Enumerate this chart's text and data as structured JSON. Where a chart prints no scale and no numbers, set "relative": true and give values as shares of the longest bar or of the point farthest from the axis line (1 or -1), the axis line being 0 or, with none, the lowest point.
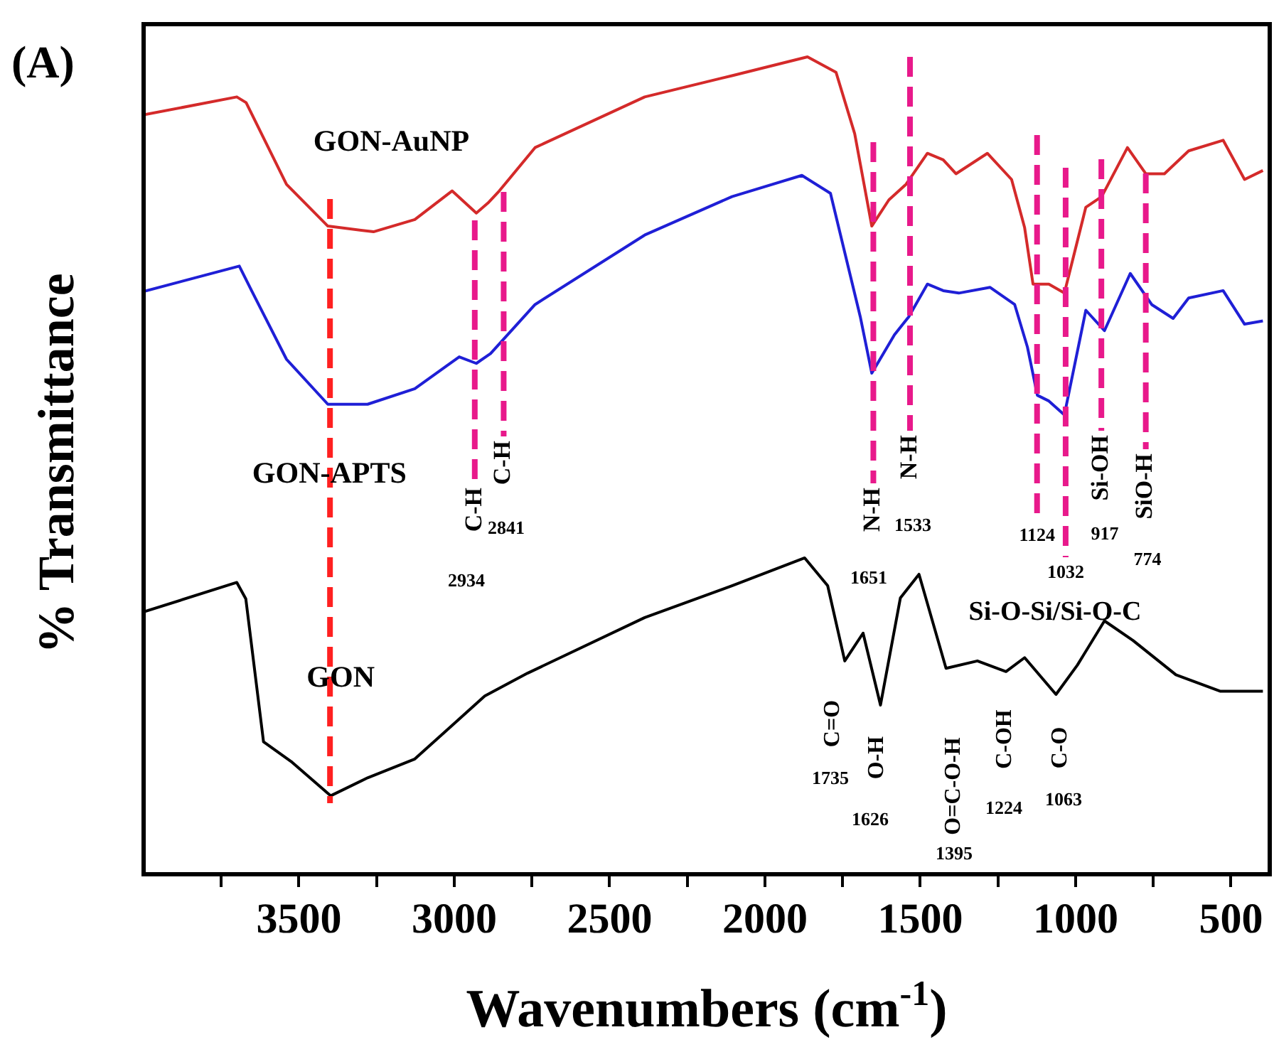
{
  "chart_data": {
    "type": "line",
    "title": "(A)",
    "xlabel": "Wavenumbers (cm$^{-1}$)",
    "ylabel": "% Transmittance",
    "relative": true,
    "marker": "none",
    "line_style": "solid",
    "xlim": [
      4000,
      375
    ],
    "xticks": [
      {
        "value": 3750,
        "label": null
      },
      3500,
      {
        "value": 3250,
        "label": null
      },
      3000,
      {
        "value": 2750,
        "label": null
      },
      2500,
      {
        "value": 2250,
        "label": null
      },
      2000,
      {
        "value": 1750,
        "label": null
      },
      1500,
      {
        "value": 1250,
        "label": null
      },
      1000,
      {
        "value": 750,
        "label": null
      },
      500
    ],
    "series": [
      {
        "name": "GON-AuNP",
        "color": "#d42a2a",
        "x": [
          4000,
          3700,
          3670,
          3540,
          3407,
          3260,
          3127,
          3007,
          2929,
          2892,
          2855,
          2740,
          2387,
          2106,
          1863,
          1771,
          1711,
          1656,
          1601,
          1546,
          1477,
          1426,
          1385,
          1284,
          1206,
          1164,
          1137,
          1086,
          1036,
          967,
          916,
          833,
          774,
          714,
          636,
          525,
          456,
          397
        ],
        "values": [
          0.929,
          0.951,
          0.944,
          0.844,
          0.793,
          0.786,
          0.801,
          0.836,
          0.809,
          0.821,
          0.836,
          0.889,
          0.951,
          0.977,
          1.0,
          0.981,
          0.906,
          0.793,
          0.825,
          0.844,
          0.882,
          0.874,
          0.857,
          0.882,
          0.85,
          0.791,
          0.722,
          0.722,
          0.711,
          0.816,
          0.829,
          0.889,
          0.857,
          0.857,
          0.885,
          0.898,
          0.85,
          0.861
        ]
      },
      {
        "name": "GON-APTS",
        "color": "#1f1fd6",
        "x": [
          4000,
          3692,
          3651,
          3540,
          3407,
          3279,
          3127,
          2984,
          2929,
          2883,
          2740,
          2387,
          2106,
          1881,
          1789,
          1693,
          1656,
          1583,
          1537,
          1477,
          1426,
          1376,
          1275,
          1196,
          1155,
          1123,
          1086,
          1036,
          967,
          907,
          824,
          755,
          686,
          636,
          525,
          456,
          397
        ],
        "values": [
          0.713,
          0.744,
          0.713,
          0.63,
          0.575,
          0.575,
          0.594,
          0.633,
          0.625,
          0.637,
          0.697,
          0.782,
          0.829,
          0.855,
          0.833,
          0.682,
          0.613,
          0.66,
          0.682,
          0.722,
          0.714,
          0.711,
          0.718,
          0.697,
          0.645,
          0.586,
          0.579,
          0.562,
          0.69,
          0.665,
          0.735,
          0.697,
          0.68,
          0.705,
          0.714,
          0.673,
          0.677
        ]
      },
      {
        "name": "GON",
        "color": "#000000",
        "x": [
          4000,
          3700,
          3671,
          3614,
          3522,
          3398,
          3279,
          3127,
          2902,
          2764,
          2387,
          2106,
          1872,
          1798,
          1743,
          1684,
          1628,
          1564,
          1504,
          1417,
          1316,
          1224,
          1164,
          1063,
          994,
          907,
          815,
          677,
          535,
          397
        ],
        "values": [
          0.321,
          0.357,
          0.337,
          0.162,
          0.137,
          0.096,
          0.118,
          0.141,
          0.218,
          0.246,
          0.314,
          0.353,
          0.387,
          0.353,
          0.261,
          0.295,
          0.207,
          0.338,
          0.367,
          0.252,
          0.261,
          0.248,
          0.265,
          0.22,
          0.256,
          0.31,
          0.286,
          0.244,
          0.224,
          0.224
        ]
      }
    ],
    "ref_lines": [
      {
        "axis": "x",
        "value": 3400,
        "color": "#ff2020",
        "line_style": "dashed"
      },
      {
        "axis": "x",
        "value": 2934,
        "label": "C-H",
        "color": "#e8198b",
        "line_style": "dashed"
      },
      {
        "axis": "x",
        "value": 2841,
        "label": "C-H",
        "color": "#e8198b",
        "line_style": "dashed"
      },
      {
        "axis": "x",
        "value": 1651,
        "label": "N-H",
        "color": "#e8198b",
        "line_style": "dashed"
      },
      {
        "axis": "x",
        "value": 1533,
        "label": "N-H",
        "color": "#e8198b",
        "line_style": "dashed"
      },
      {
        "axis": "x",
        "value": 1124,
        "label": "1124",
        "color": "#e8198b",
        "line_style": "dashed"
      },
      {
        "axis": "x",
        "value": 1032,
        "label": "1032",
        "color": "#e8198b",
        "line_style": "dashed"
      },
      {
        "axis": "x",
        "value": 917,
        "label": "Si-OH",
        "color": "#e8198b",
        "line_style": "dashed"
      },
      {
        "axis": "x",
        "value": 774,
        "label": "SiO-H",
        "color": "#e8198b",
        "line_style": "dashed"
      }
    ],
    "annotations": [
      "2934",
      "2841",
      "1651",
      "1533",
      "917",
      "774",
      "C=O",
      "O-H",
      "O=C-O-H",
      "C-OH",
      "C-O",
      "1735",
      "1626",
      "1395",
      "1224",
      "1063",
      "Si-O-Si/Si-O-C"
    ]
  }
}
